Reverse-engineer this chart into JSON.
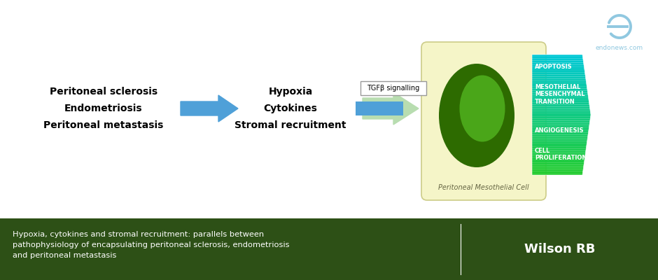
{
  "bg_color": "#ffffff",
  "footer_bg": "#2d5016",
  "footer_text": "Hypoxia, cytokines and stromal recruitment: parallels between\npathophysiology of encapsulating peritoneal sclerosis, endometriosis\nand peritoneal metastasis",
  "footer_author": "Wilson RB",
  "left_labels": [
    "Peritoneal sclerosis",
    "Endometriosis",
    "Peritoneal metastasis"
  ],
  "middle_labels": [
    "Hypoxia",
    "Cytokines",
    "Stromal recruitment"
  ],
  "arrow1_color": "#4fa0d8",
  "tgfb_label": "TGFβ signalling",
  "cell_box_color": "#f5f5c8",
  "cell_label": "Peritoneal Mesothelial Cell",
  "ellipse_dark": "#2d6b00",
  "ellipse_light": "#55bb22",
  "outcome_top_color": "#00c8d8",
  "outcome_bot_color": "#22cc44",
  "outcomes": [
    "APOPTOSIS",
    "MESOTHELIAL\nMESENCHYMAL\nTRANSITION",
    "ANGIOGENESIS",
    "CELL\nPROLIFERATION"
  ],
  "endonews_color": "#90c8e0",
  "endonews_text": "endonews.com"
}
